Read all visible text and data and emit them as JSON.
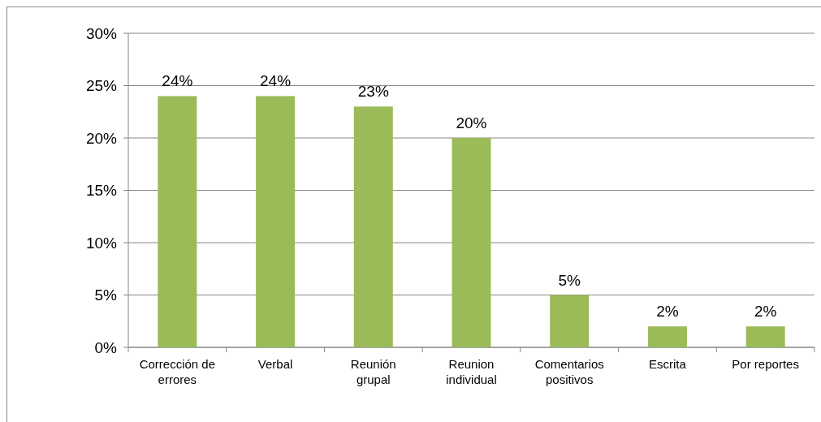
{
  "chart_data": {
    "type": "bar",
    "categories": [
      "Corrección de errores",
      "Verbal",
      "Reunión grupal",
      "Reunion individual",
      "Comentarios positivos",
      "Escrita",
      "Por reportes"
    ],
    "values": [
      24,
      24,
      23,
      20,
      5,
      2,
      2
    ],
    "value_labels": [
      "24%",
      "24%",
      "23%",
      "20%",
      "5%",
      "2%",
      "2%"
    ],
    "color": "#9bbb59",
    "ylim": [
      0,
      30
    ],
    "yticks": [
      {
        "value": 0,
        "label": "0%"
      },
      {
        "value": 5,
        "label": "5%"
      },
      {
        "value": 10,
        "label": "10%"
      },
      {
        "value": 15,
        "label": "15%"
      },
      {
        "value": 20,
        "label": "20%"
      },
      {
        "value": 25,
        "label": "25%"
      },
      {
        "value": 30,
        "label": "30%"
      }
    ],
    "grid": "y"
  }
}
